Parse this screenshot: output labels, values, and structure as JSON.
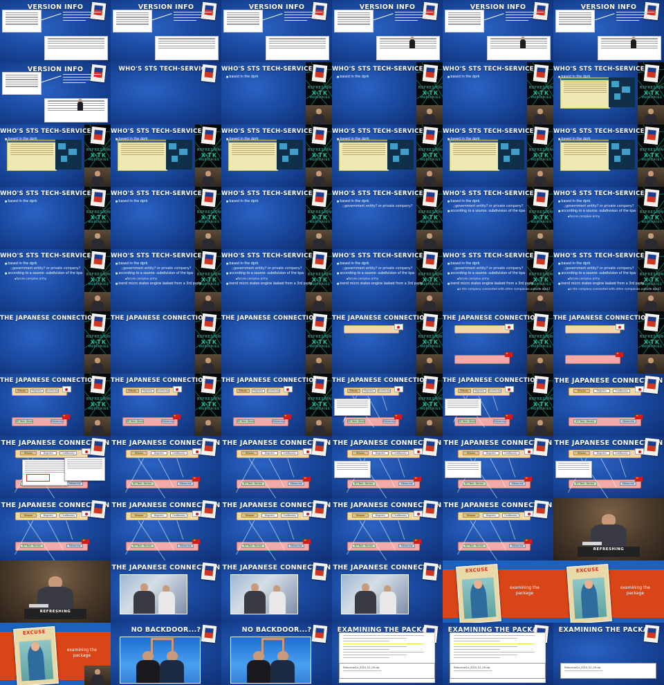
{
  "titles": {
    "version_info": "VERSION INFO",
    "whos_sts": "WHO'S STS TECH-SERVICE?",
    "japanese": "THE JAPANESE CONNECTION",
    "no_backdoor": "NO BACKDOOR...?",
    "examining": "EXAMINING THE PACKAGE"
  },
  "bullets": {
    "based_in": "based in the dprk",
    "gov_or_private": "government entity? or private company?",
    "source_sub": "according to a source: subdivision of the kpa",
    "forces_complex": "forces complex army",
    "trend_micro": "trend micro states engine leaked from a 3rd party",
    "company_connected": "is the company connected with other companies outside dprk?"
  },
  "brand": {
    "top": "REFRESHING",
    "middle": "X-TK",
    "bottom": "MEMORIES"
  },
  "podium_label": "REFRESHING",
  "excuse": {
    "title": "EXCUSE",
    "subtitle_1": "examining the",
    "subtitle_2": "package"
  },
  "japanese_chips": {
    "top_left": "Ritsuko",
    "top_mid": "Magnetic",
    "top_right": "OneMonkey",
    "bot_left": "SIT Tech. Service",
    "bot_right": "Silivaccine"
  },
  "doc_file": "SiVaccine4.x_2015_01_09.zip"
}
